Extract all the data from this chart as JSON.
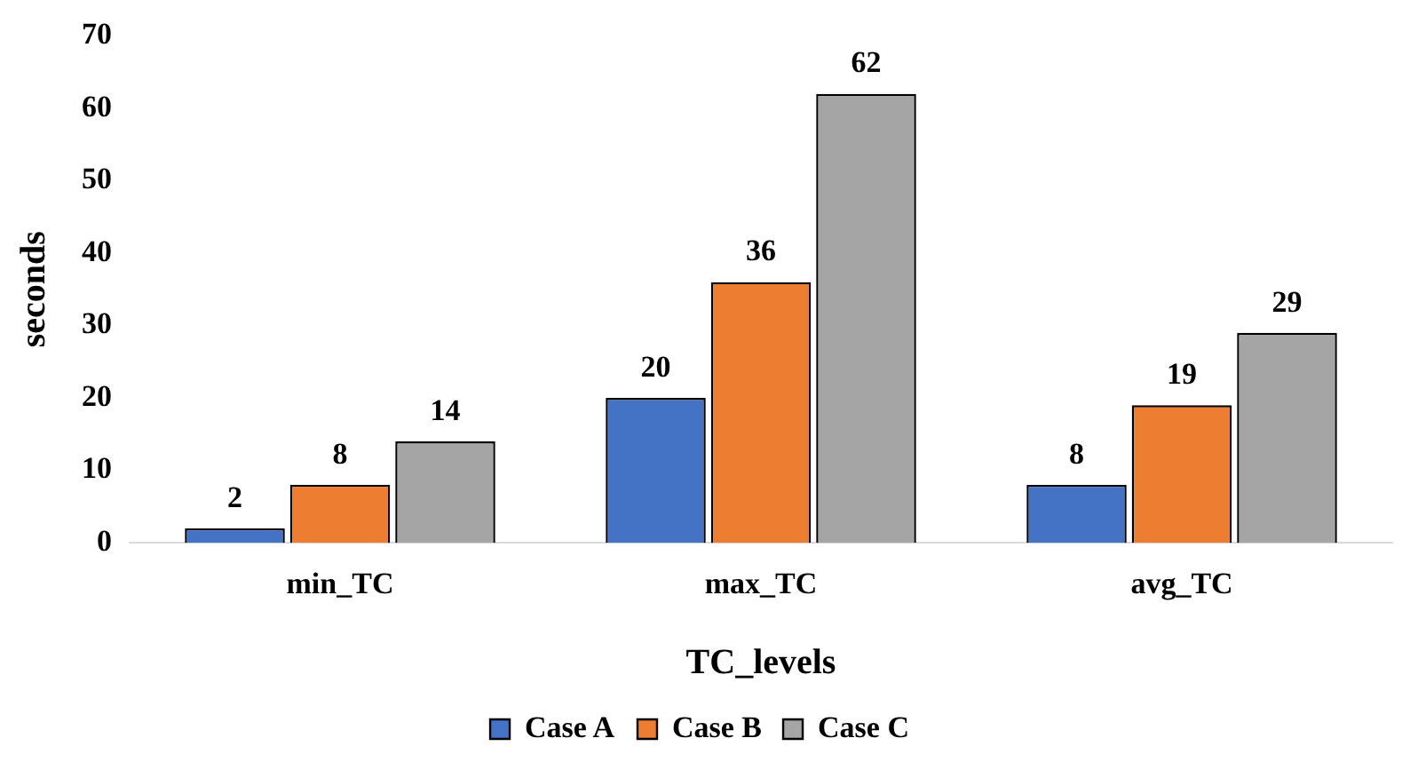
{
  "chart_data": {
    "type": "bar",
    "xlabel": "TC_levels",
    "ylabel": "seconds",
    "categories": [
      "min_TC",
      "max_TC",
      "avg_TC"
    ],
    "series": [
      {
        "name": "Case A",
        "color": "#4472c4",
        "values": [
          2,
          20,
          8
        ]
      },
      {
        "name": "Case B",
        "color": "#ed7d31",
        "values": [
          8,
          36,
          19
        ]
      },
      {
        "name": "Case C",
        "color": "#a5a5a5",
        "values": [
          14,
          62,
          29
        ]
      }
    ],
    "ylim": [
      0,
      70
    ],
    "yticks": [
      0,
      10,
      20,
      30,
      40,
      50,
      60,
      70
    ],
    "grid": false,
    "legend": "bottom",
    "data_labels": true
  }
}
